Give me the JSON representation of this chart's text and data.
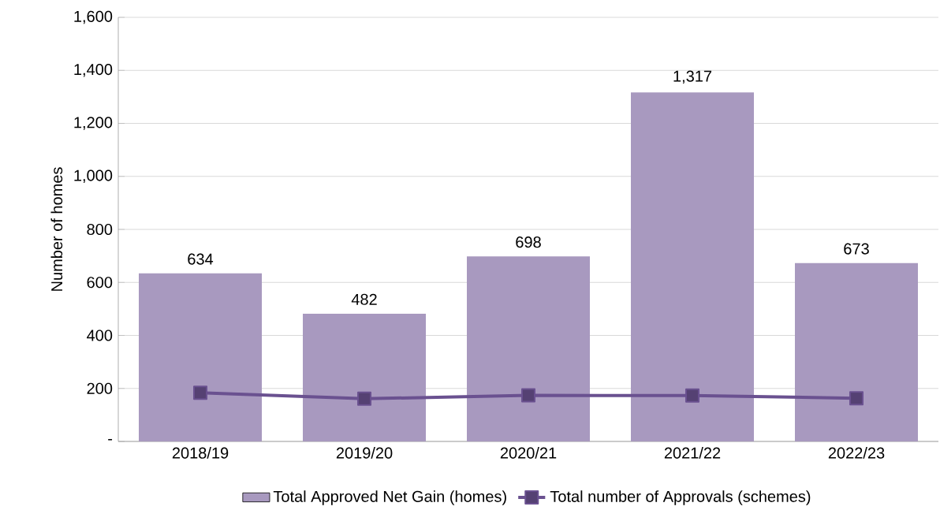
{
  "chart_data": {
    "type": "bar",
    "ylabel": "Number of homes",
    "categories": [
      "2018/19",
      "2019/20",
      "2020/21",
      "2021/22",
      "2022/23"
    ],
    "series": [
      {
        "name": "Total Approved Net Gain (homes)",
        "color": "#a899bf",
        "values": [
          634,
          482,
          698,
          1317,
          673
        ],
        "value_labels": [
          "634",
          "482",
          "698",
          "1,317",
          "673"
        ]
      },
      {
        "name": "Total number of Approvals (schemes)",
        "type": "line",
        "color": "#6a5190",
        "marker": "square",
        "values": [
          184,
          161,
          174,
          173,
          163
        ]
      }
    ],
    "ylim": [
      0,
      1600
    ],
    "yticks": [
      {
        "value": 0,
        "label": "-"
      },
      {
        "value": 200,
        "label": "200"
      },
      {
        "value": 400,
        "label": "400"
      },
      {
        "value": 600,
        "label": "600"
      },
      {
        "value": 800,
        "label": "800"
      },
      {
        "value": 1000,
        "label": "1,000"
      },
      {
        "value": 1200,
        "label": "1,200"
      },
      {
        "value": 1400,
        "label": "1,400"
      },
      {
        "value": 1600,
        "label": "1,600"
      }
    ],
    "grid": "y",
    "legend": "bottom"
  }
}
